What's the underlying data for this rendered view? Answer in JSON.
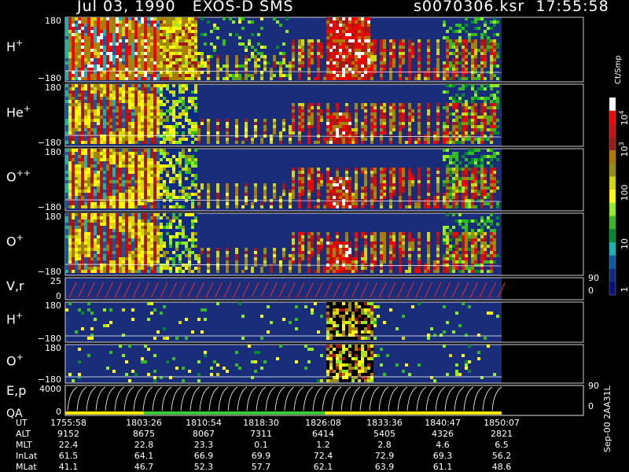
{
  "header": {
    "date": "Jul 03, 1990",
    "instrument": "EXOS-D SMS",
    "file": "s0070306.ksr",
    "time": "17:55:58"
  },
  "side_label": "Sep-00 2AA31L",
  "colors": {
    "background": "#000000",
    "plot_bg": "#1a2d7a",
    "trace_red": "#ff2a2a",
    "trace_white": "#ffffff",
    "qa_yellow": "#ffe800",
    "qa_green": "#33cc33"
  },
  "chart_data": {
    "type": "heatmap",
    "colorbar": {
      "unit": "Ct/Smp",
      "tick_labels": [
        "10",
        "4",
        "10",
        "3",
        "100",
        "10",
        "1"
      ],
      "ticks": [
        {
          "label": "10",
          "exp": "4"
        },
        {
          "label": "10",
          "exp": "3"
        },
        {
          "label": "100",
          "exp": ""
        },
        {
          "label": "10",
          "exp": ""
        },
        {
          "label": "1",
          "exp": ""
        }
      ],
      "colors": [
        "#ffffff",
        "#ff0000",
        "#cc1010",
        "#a01818",
        "#b07800",
        "#9a8c10",
        "#d8d800",
        "#ffff00",
        "#90ee20",
        "#33bb22",
        "#008a30",
        "#12b6b6",
        "#0a5aaa",
        "#102a88",
        "#08127a"
      ]
    },
    "panels": [
      {
        "label": "H",
        "sup": "+",
        "ymax": "180",
        "ymin": "−180",
        "kind": "spin"
      },
      {
        "label": "He",
        "sup": "+",
        "ymax": "180",
        "ymin": "−180",
        "kind": "spin"
      },
      {
        "label": "O",
        "sup": "++",
        "ymax": "180",
        "ymin": "−180",
        "kind": "spin"
      },
      {
        "label": "O",
        "sup": "+",
        "ymax": "180",
        "ymin": "−180",
        "kind": "spin"
      },
      {
        "label": "V,r",
        "sup": "",
        "ymax": "25",
        "ymin": "0",
        "right_top": "90",
        "right_bottom": "0",
        "kind": "line"
      },
      {
        "label": "H",
        "sup": "+",
        "ymax": "180",
        "ymin": "−180",
        "kind": "sparse"
      },
      {
        "label": "O",
        "sup": "+",
        "ymax": "180",
        "ymin": "−180",
        "kind": "sparse"
      },
      {
        "label": "E,p",
        "sup": "",
        "label2": "QA",
        "ymax": "4000",
        "ymin": "0",
        "right_top": "90",
        "right_bottom": "0",
        "kind": "energy"
      }
    ],
    "x_axis": {
      "rows": [
        {
          "name": "UT",
          "values": [
            "1755:58",
            "1803:26",
            "1810:54",
            "1818:30",
            "1826:08",
            "1833:36",
            "1840:47",
            "1850:07"
          ]
        },
        {
          "name": "ALT",
          "values": [
            "9152",
            "8675",
            "8067",
            "7311",
            "6414",
            "5405",
            "4326",
            "2821"
          ]
        },
        {
          "name": "MLT",
          "values": [
            "22.4",
            "22.8",
            "23.3",
            "0.1",
            "1.2",
            "2.8",
            "4.6",
            "6.5"
          ]
        },
        {
          "name": "InLat",
          "values": [
            "61.5",
            "64.1",
            "66.9",
            "69.9",
            "72.4",
            "72.9",
            "69.3",
            "56.2"
          ]
        },
        {
          "name": "MLat",
          "values": [
            "41.1",
            "46.7",
            "52.3",
            "57.7",
            "62.1",
            "63.9",
            "61.1",
            "48.6"
          ]
        }
      ]
    }
  }
}
